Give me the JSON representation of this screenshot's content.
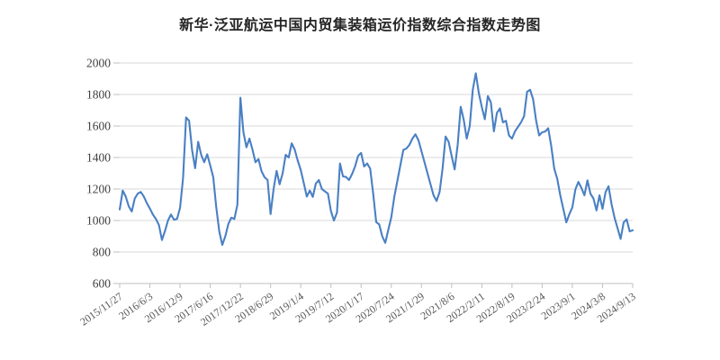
{
  "chart_data": {
    "type": "line",
    "title": "新华·泛亚航运中国内贸集装箱运价指数综合指数走势图",
    "xlabel": "",
    "ylabel": "",
    "ylim": [
      600,
      2000
    ],
    "y_ticks": [
      600,
      800,
      1000,
      1200,
      1400,
      1600,
      1800,
      2000
    ],
    "x_tick_labels": [
      "2015/11/27",
      "2016/6/3",
      "2016/12/9",
      "2017/6/16",
      "2017/12/22",
      "2018/6/29",
      "2019/1/4",
      "2019/7/12",
      "2020/1/17",
      "2020/7/24",
      "2021/1/29",
      "2021/8/6",
      "2022/2/11",
      "2022/8/19",
      "2023/2/24",
      "2023/9/1",
      "2024/3/8",
      "2024/9/13"
    ],
    "points_per_label_interval": 10,
    "grid": "horizontal",
    "legend": "none",
    "values": [
      1070,
      1190,
      1152,
      1090,
      1057,
      1140,
      1171,
      1181,
      1152,
      1110,
      1076,
      1038,
      1010,
      971,
      876,
      933,
      1000,
      1038,
      1005,
      1010,
      1080,
      1270,
      1655,
      1633,
      1446,
      1332,
      1500,
      1417,
      1370,
      1420,
      1350,
      1275,
      1084,
      930,
      845,
      900,
      978,
      1018,
      1010,
      1100,
      1780,
      1560,
      1465,
      1520,
      1450,
      1370,
      1390,
      1313,
      1275,
      1258,
      1041,
      1200,
      1315,
      1230,
      1300,
      1417,
      1400,
      1490,
      1450,
      1380,
      1320,
      1238,
      1152,
      1190,
      1150,
      1235,
      1257,
      1200,
      1185,
      1171,
      1060,
      1000,
      1050,
      1362,
      1280,
      1276,
      1257,
      1295,
      1343,
      1410,
      1429,
      1343,
      1362,
      1330,
      1171,
      990,
      975,
      900,
      858,
      940,
      1020,
      1150,
      1250,
      1350,
      1448,
      1457,
      1480,
      1520,
      1547,
      1510,
      1440,
      1370,
      1300,
      1230,
      1160,
      1124,
      1180,
      1330,
      1533,
      1500,
      1410,
      1324,
      1480,
      1722,
      1640,
      1520,
      1600,
      1829,
      1935,
      1810,
      1720,
      1643,
      1790,
      1750,
      1566,
      1683,
      1712,
      1623,
      1633,
      1540,
      1520,
      1566,
      1595,
      1623,
      1662,
      1817,
      1830,
      1770,
      1633,
      1540,
      1560,
      1565,
      1586,
      1474,
      1330,
      1264,
      1160,
      1074,
      988,
      1040,
      1083,
      1197,
      1245,
      1207,
      1160,
      1255,
      1170,
      1140,
      1064,
      1160,
      1074,
      1180,
      1217,
      1103,
      1017,
      950,
      883,
      988,
      1007,
      931,
      938
    ],
    "colors": {
      "line": "#4a80c4",
      "grid": "#d9d9d9",
      "axis": "#bfbfbf",
      "y_tick_text": "#404040",
      "x_tick_text": "#595959",
      "title_text": "#262626",
      "background": "#ffffff"
    }
  }
}
